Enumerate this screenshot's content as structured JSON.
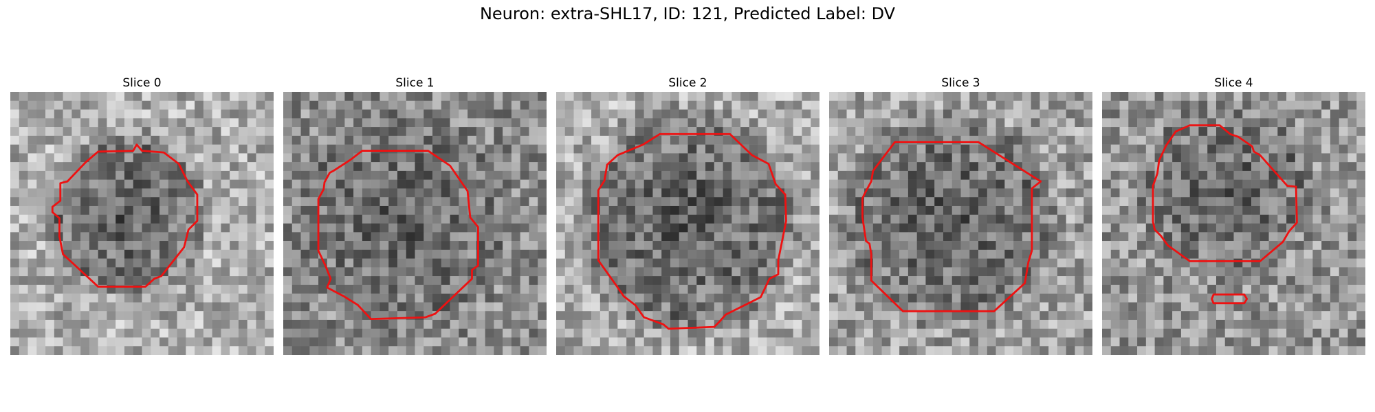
{
  "figure": {
    "title": "Neuron: extra-SHL17, ID: 121, Predicted Label: DV",
    "contour_color": "#ee1111",
    "colormap": "gray"
  },
  "panels": [
    {
      "title": "Slice 0"
    },
    {
      "title": "Slice 1"
    },
    {
      "title": "Slice 2"
    },
    {
      "title": "Slice 3"
    },
    {
      "title": "Slice 4"
    }
  ]
}
